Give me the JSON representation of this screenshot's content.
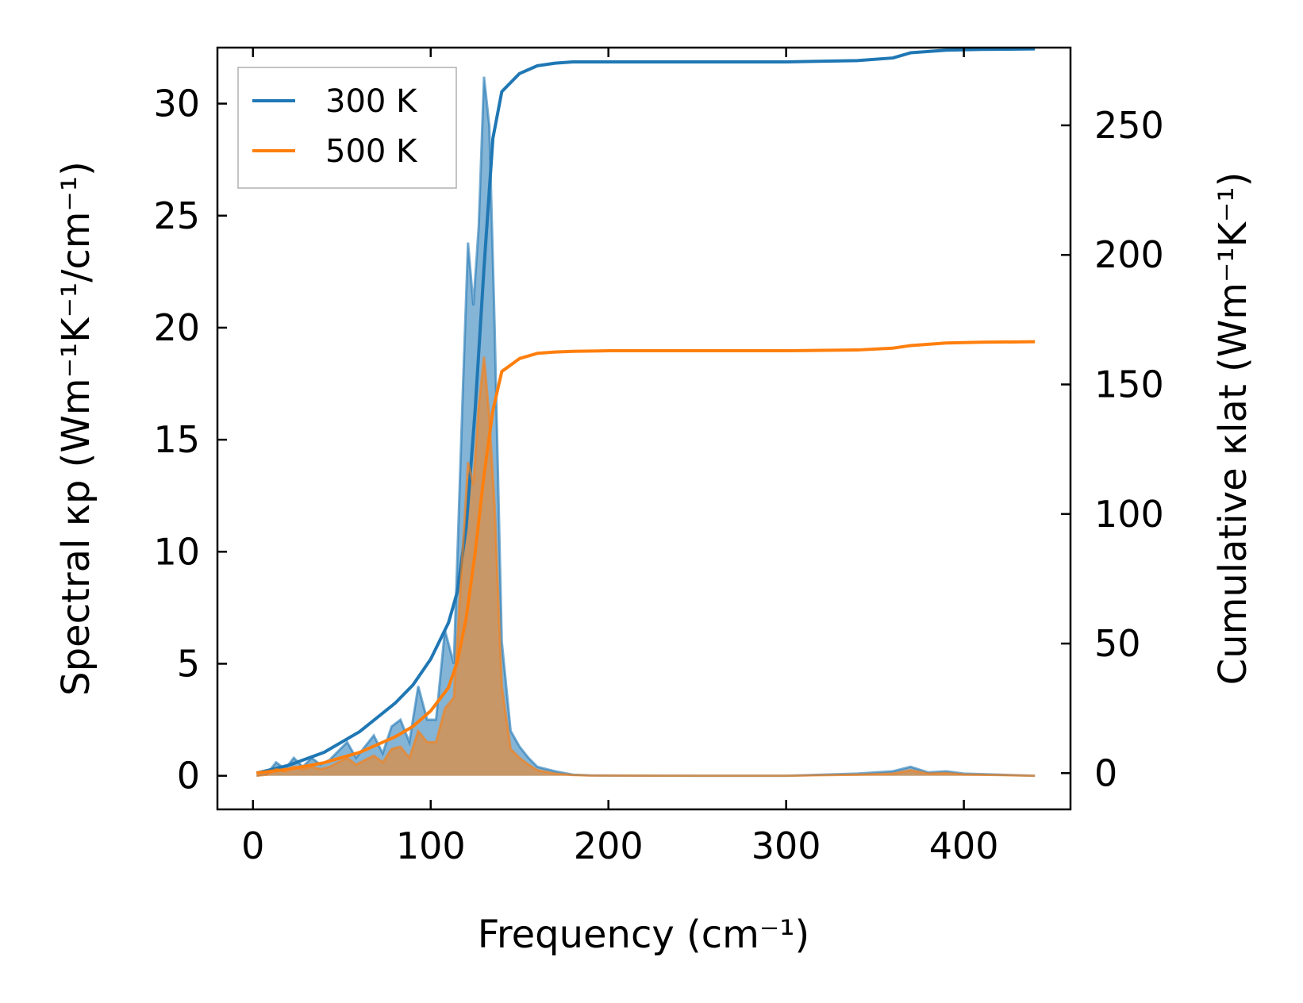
{
  "chart_data": {
    "type": "area",
    "xlabel": "Frequency (cm⁻¹)",
    "ylabel_left": "Spectral κp (Wm⁻¹K⁻¹/cm⁻¹)",
    "ylabel_right": "Cumulative κlat (Wm⁻¹K⁻¹)",
    "xlim": [
      -20,
      460
    ],
    "ylim_left": [
      -1.5,
      32.5
    ],
    "ylim_right": [
      -14,
      280
    ],
    "x_ticks": [
      0,
      100,
      200,
      300,
      400
    ],
    "y_left_ticks": [
      0,
      5,
      10,
      15,
      20,
      25,
      30
    ],
    "y_right_ticks": [
      0,
      50,
      100,
      150,
      200,
      250
    ],
    "legend_position": "top-left",
    "grid": false,
    "series": [
      {
        "name": "300 K",
        "color": "#1f77b4",
        "spectral": {
          "x": [
            2,
            8,
            13,
            18,
            23,
            28,
            33,
            38,
            43,
            48,
            53,
            58,
            63,
            68,
            73,
            78,
            83,
            88,
            93,
            98,
            103,
            108,
            113,
            118,
            121,
            124,
            127,
            130,
            133,
            136,
            140,
            145,
            150,
            155,
            160,
            170,
            180,
            190,
            200,
            250,
            300,
            340,
            360,
            370,
            380,
            390,
            400,
            420,
            440
          ],
          "y": [
            0,
            0.1,
            0.6,
            0.3,
            0.8,
            0.4,
            0.8,
            0.5,
            0.7,
            1.1,
            1.5,
            0.8,
            1.3,
            1.8,
            1.0,
            2.2,
            2.5,
            1.5,
            4.0,
            2.5,
            2.5,
            6.5,
            5.0,
            17.0,
            23.8,
            21.0,
            24.5,
            31.2,
            29.0,
            20.0,
            6.0,
            2.0,
            1.3,
            0.8,
            0.4,
            0.2,
            0.05,
            0.02,
            0.01,
            0.0,
            0.0,
            0.1,
            0.2,
            0.4,
            0.15,
            0.2,
            0.1,
            0.05,
            0.0
          ]
        },
        "cumulative": {
          "x": [
            2,
            20,
            40,
            60,
            80,
            90,
            100,
            110,
            115,
            120,
            125,
            130,
            135,
            140,
            150,
            160,
            170,
            180,
            200,
            300,
            340,
            360,
            370,
            390,
            410,
            440
          ],
          "y": [
            0,
            3,
            8,
            16,
            27,
            34,
            44,
            58,
            70,
            95,
            140,
            195,
            245,
            263,
            270,
            273,
            274,
            274.5,
            274.5,
            274.5,
            275,
            276,
            278,
            279,
            279.3,
            279.5
          ]
        }
      },
      {
        "name": "500 K",
        "color": "#ff7f0e",
        "spectral": {
          "x": [
            2,
            8,
            13,
            18,
            23,
            28,
            33,
            38,
            43,
            48,
            53,
            58,
            63,
            68,
            73,
            78,
            83,
            88,
            93,
            98,
            103,
            108,
            113,
            118,
            121,
            124,
            127,
            130,
            133,
            136,
            140,
            145,
            150,
            155,
            160,
            170,
            180,
            190,
            200,
            250,
            300,
            340,
            360,
            370,
            380,
            390,
            400,
            420,
            440
          ],
          "y": [
            0,
            0.05,
            0.3,
            0.2,
            0.4,
            0.3,
            0.4,
            0.3,
            0.4,
            0.6,
            0.8,
            0.5,
            0.7,
            0.9,
            0.6,
            1.2,
            1.3,
            0.8,
            2.0,
            1.5,
            1.5,
            3.0,
            3.5,
            10.0,
            14.0,
            13.0,
            16.5,
            18.7,
            16.0,
            12.0,
            4.0,
            1.2,
            0.8,
            0.5,
            0.25,
            0.1,
            0.03,
            0.01,
            0.01,
            0.0,
            0.0,
            0.05,
            0.1,
            0.25,
            0.1,
            0.12,
            0.06,
            0.03,
            0.0
          ]
        },
        "cumulative": {
          "x": [
            2,
            20,
            40,
            60,
            80,
            90,
            100,
            110,
            115,
            120,
            125,
            130,
            135,
            140,
            150,
            160,
            170,
            180,
            200,
            300,
            340,
            360,
            370,
            390,
            410,
            440
          ],
          "y": [
            0,
            1.5,
            4,
            8,
            14,
            18,
            24,
            33,
            43,
            60,
            85,
            115,
            140,
            155,
            160,
            162,
            162.5,
            162.8,
            163,
            163,
            163.3,
            164,
            165,
            166,
            166.3,
            166.5
          ]
        }
      }
    ]
  }
}
